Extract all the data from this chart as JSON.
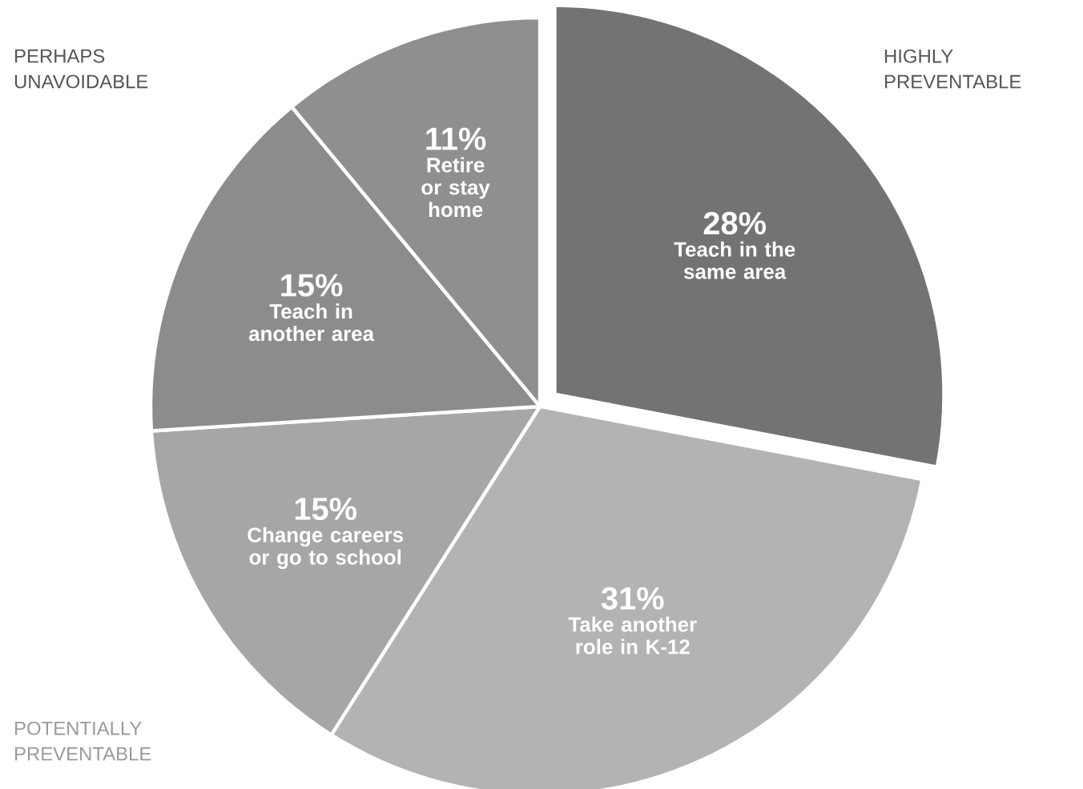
{
  "chart_data": {
    "type": "pie",
    "categories": [
      "Teach in the same area",
      "Take another role in K-12",
      "Change careers or go to school",
      "Teach in another area",
      "Retire or stay home"
    ],
    "values": [
      28,
      31,
      15,
      15,
      11
    ],
    "colors": [
      "#737373",
      "#b3b3b3",
      "#a6a6a6",
      "#8c8c8c",
      "#8f8f8f"
    ],
    "value_labels": [
      "28%",
      "31%",
      "15%",
      "15%",
      "11%"
    ],
    "annotations": [
      "HIGHLY PREVENTABLE",
      "PERHAPS UNAVOIDABLE",
      "POTENTIALLY PREVENTABLE"
    ]
  }
}
